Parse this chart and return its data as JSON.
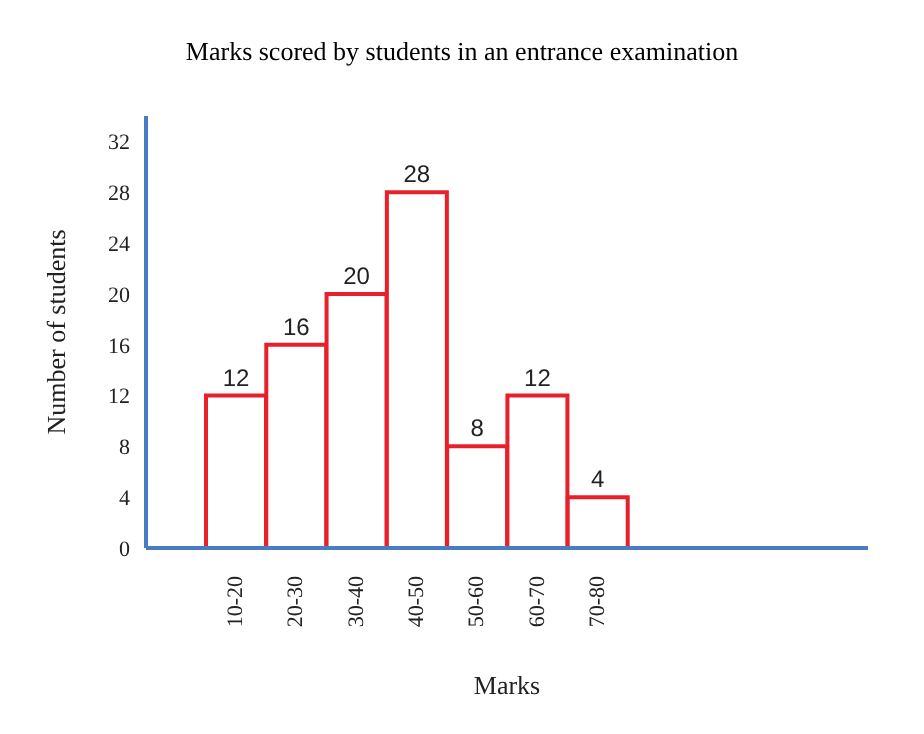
{
  "chart_data": {
    "type": "bar",
    "title": "Marks scored by students in an entrance examination",
    "xlabel": "Marks",
    "ylabel": "Number of students",
    "categories": [
      "10-20",
      "20-30",
      "30-40",
      "40-50",
      "50-60",
      "60-70",
      "70-80"
    ],
    "values": [
      12,
      16,
      20,
      28,
      8,
      12,
      4
    ],
    "color": "#e8202a",
    "ylim": [
      0,
      34
    ],
    "yticks": [
      0,
      4,
      8,
      12,
      16,
      20,
      24,
      28,
      32
    ],
    "grid": false,
    "data_labels": true
  }
}
